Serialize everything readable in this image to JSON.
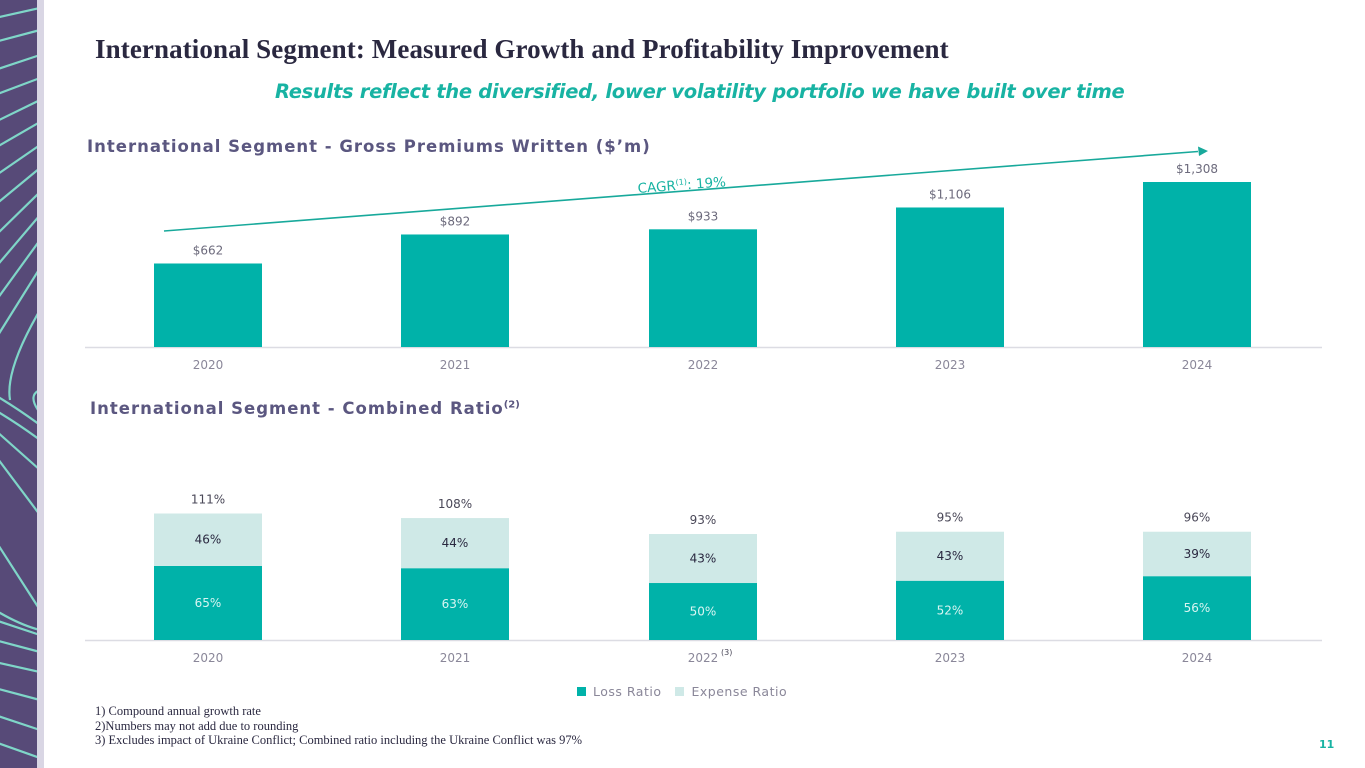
{
  "slide": {
    "title": "International Segment: Measured Growth and Profitability Improvement",
    "subtitle": "Results reflect the diversified, lower volatility portfolio we have built over time",
    "page_number": "11",
    "colors": {
      "teal": "#00b2a9",
      "light_teal": "#cfe9e7",
      "purple": "#574a78",
      "line_teal": "#18b3a3"
    }
  },
  "gpw_section": {
    "title": "International Segment - Gross Premiums Written ($’m)",
    "cagr_label": "CAGR",
    "cagr_sup": "(1)",
    "cagr_value": ": 19%"
  },
  "cr_section": {
    "title": "International Segment - Combined Ratio",
    "title_sup": "(2)"
  },
  "legend": {
    "loss_label": "Loss Ratio",
    "expense_label": "Expense Ratio"
  },
  "footnotes": [
    "1) Compound annual growth rate",
    "2)Numbers may not add due to rounding",
    "3) Excludes impact of Ukraine Conflict; Combined ratio including the Ukraine Conflict was 97%"
  ],
  "chart_data": [
    {
      "type": "bar",
      "title": "International Segment - Gross Premiums Written ($’m)",
      "categories": [
        "2020",
        "2021",
        "2022",
        "2023",
        "2024"
      ],
      "values": [
        662,
        892,
        933,
        1106,
        1308
      ],
      "data_labels": [
        "$662",
        "$892",
        "$933",
        "$1,106",
        "$1,308"
      ],
      "xlabel": "",
      "ylabel": "",
      "ylim": [
        0,
        1308
      ],
      "grid": false,
      "annotation": "CAGR(1): 19%"
    },
    {
      "type": "bar",
      "stacked": true,
      "title": "International Segment - Combined Ratio(2)",
      "categories": [
        "2020",
        "2021",
        "2022",
        "2023",
        "2024"
      ],
      "category_sups": [
        "",
        "",
        "(3)",
        "",
        ""
      ],
      "series": [
        {
          "name": "Loss Ratio",
          "values": [
            65,
            63,
            50,
            52,
            56
          ],
          "labels": [
            "65%",
            "63%",
            "50%",
            "52%",
            "56%"
          ]
        },
        {
          "name": "Expense Ratio",
          "values": [
            46,
            44,
            43,
            43,
            39
          ],
          "labels": [
            "46%",
            "44%",
            "43%",
            "43%",
            "39%"
          ]
        }
      ],
      "totals": [
        111,
        108,
        93,
        95,
        96
      ],
      "total_labels": [
        "111%",
        "108%",
        "93%",
        "95%",
        "96%"
      ],
      "xlabel": "",
      "ylabel": "",
      "ylim": [
        0,
        111
      ],
      "grid": false,
      "legend_position": "bottom-center"
    }
  ]
}
